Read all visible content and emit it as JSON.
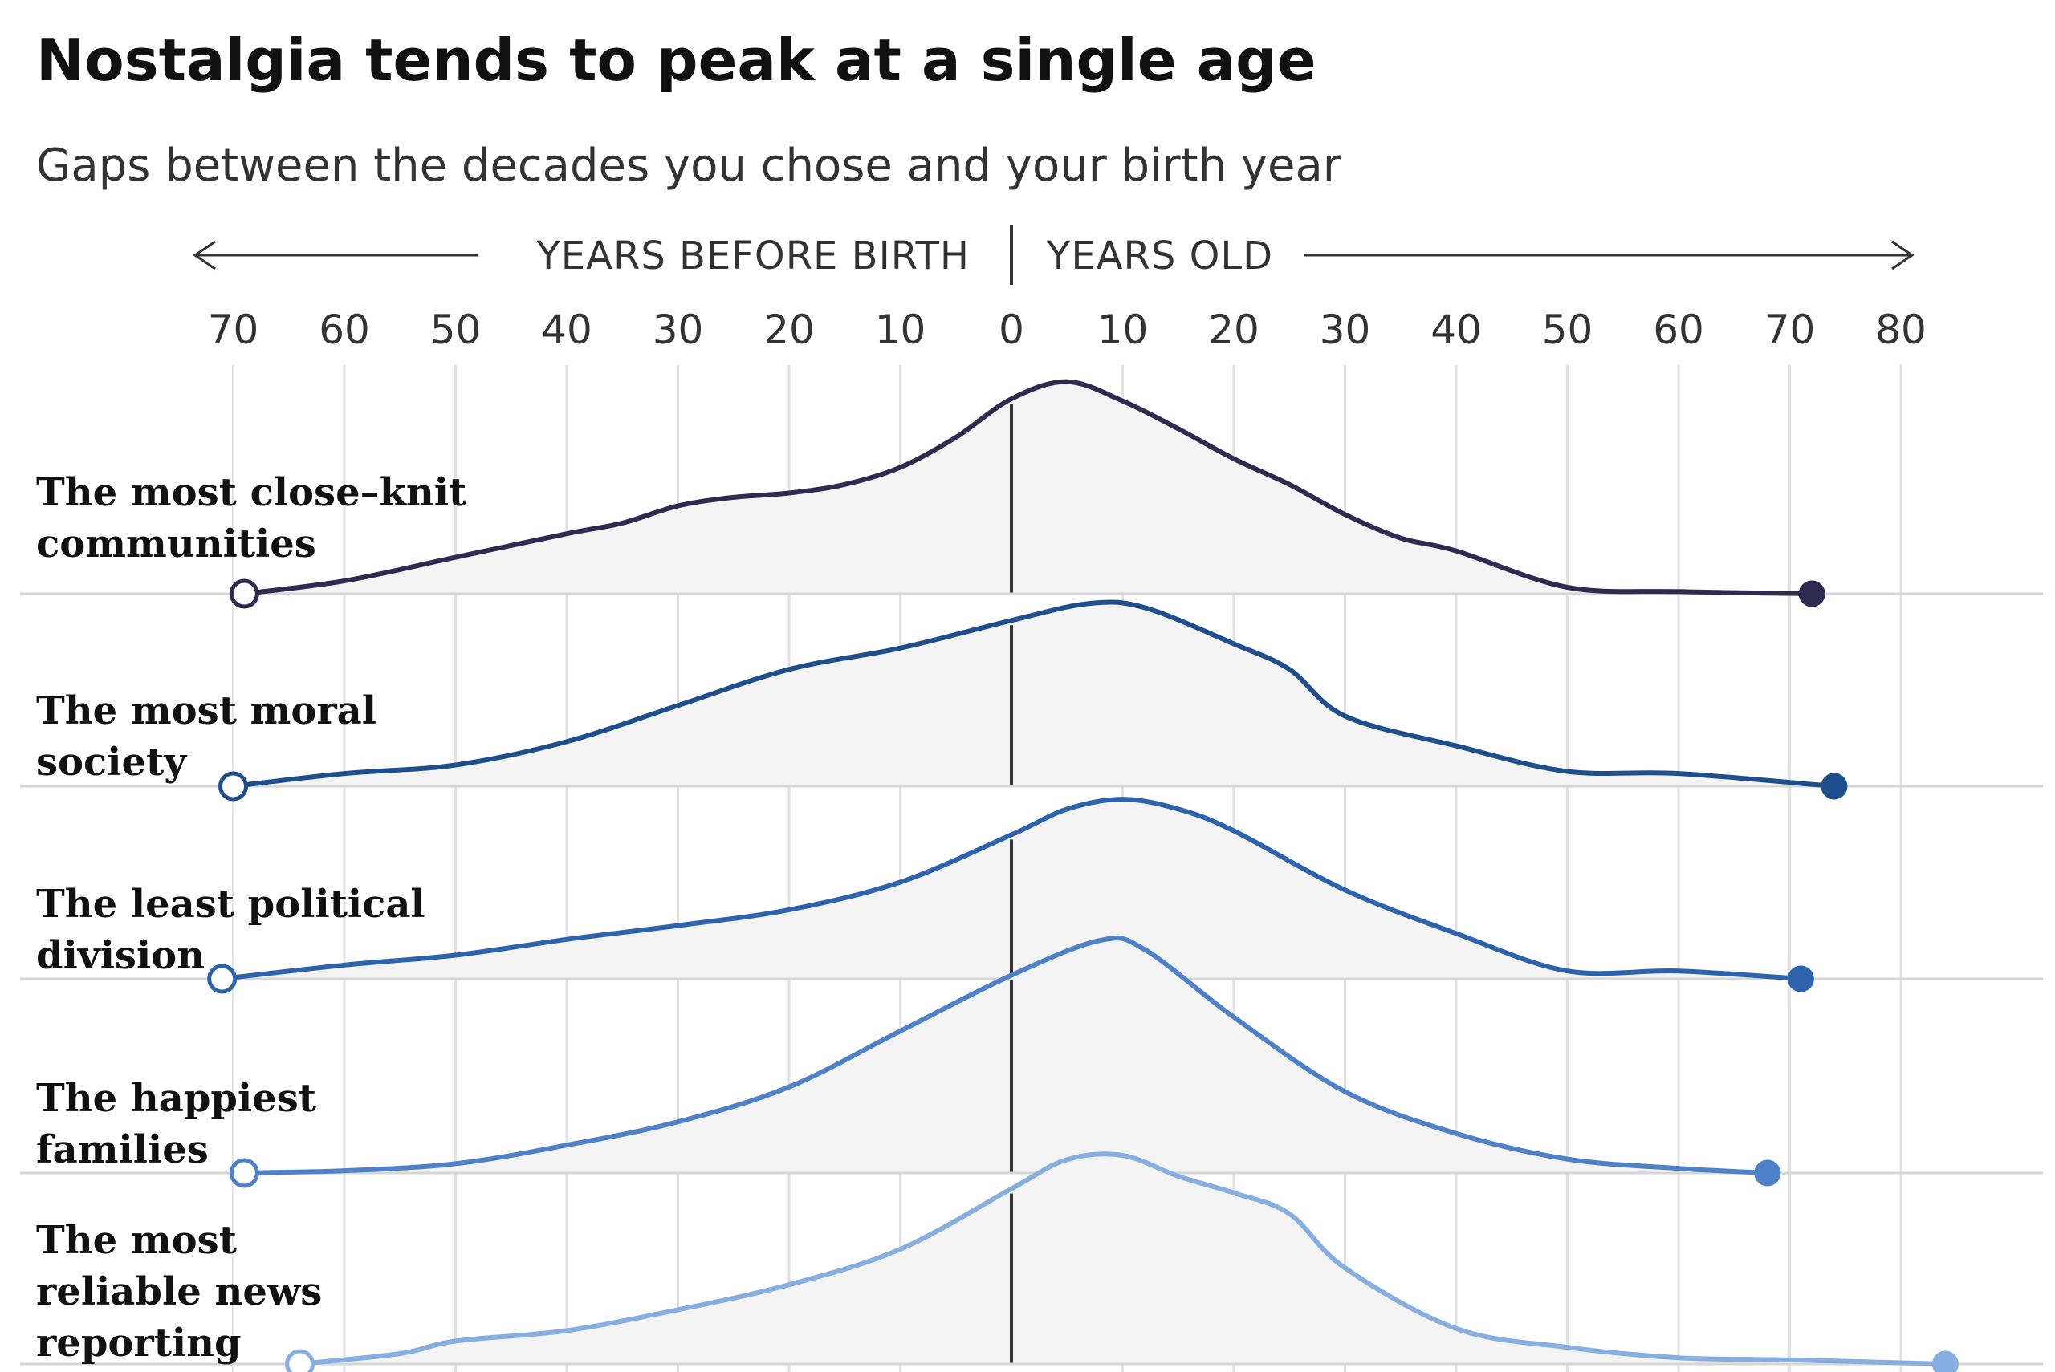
{
  "chart_data": {
    "type": "ridgeline",
    "title": "Nostalgia tends to peak at a single age",
    "subtitle": "Gaps between the decades you chose and your birth year",
    "axis_left_label": "YEARS BEFORE BIRTH",
    "axis_right_label": "YEARS OLD",
    "xlim": [
      -70,
      80
    ],
    "ticks": [
      {
        "value": -70,
        "label": "70"
      },
      {
        "value": -60,
        "label": "60"
      },
      {
        "value": -50,
        "label": "50"
      },
      {
        "value": -40,
        "label": "40"
      },
      {
        "value": -30,
        "label": "30"
      },
      {
        "value": -20,
        "label": "20"
      },
      {
        "value": -10,
        "label": "10"
      },
      {
        "value": 0,
        "label": "0"
      },
      {
        "value": 10,
        "label": "10"
      },
      {
        "value": 20,
        "label": "20"
      },
      {
        "value": 30,
        "label": "30"
      },
      {
        "value": 40,
        "label": "40"
      },
      {
        "value": 50,
        "label": "50"
      },
      {
        "value": 60,
        "label": "60"
      },
      {
        "value": 70,
        "label": "70"
      },
      {
        "value": 80,
        "label": "80"
      }
    ],
    "density_scale_max": 1.0,
    "series": [
      {
        "name": "The most close-knit communities",
        "label_lines": [
          "The most close–knit",
          "communities"
        ],
        "color": "#2f2a4f",
        "x": [
          -69,
          -60,
          -50,
          -40,
          -35,
          -30,
          -25,
          -20,
          -15,
          -10,
          -5,
          0,
          5,
          10,
          15,
          20,
          25,
          30,
          35,
          40,
          50,
          60,
          72
        ],
        "y": [
          0,
          0.06,
          0.17,
          0.28,
          0.33,
          0.41,
          0.45,
          0.47,
          0.51,
          0.59,
          0.73,
          0.91,
          0.99,
          0.9,
          0.77,
          0.63,
          0.51,
          0.37,
          0.26,
          0.2,
          0.03,
          0.01,
          0.0
        ]
      },
      {
        "name": "The most moral society",
        "label_lines": [
          "The most moral",
          "society"
        ],
        "color": "#1f4e8c",
        "x": [
          -70,
          -60,
          -50,
          -40,
          -30,
          -20,
          -10,
          0,
          7,
          12,
          20,
          25,
          30,
          40,
          50,
          60,
          74
        ],
        "y": [
          0,
          0.06,
          0.1,
          0.21,
          0.38,
          0.55,
          0.65,
          0.78,
          0.86,
          0.84,
          0.67,
          0.55,
          0.33,
          0.19,
          0.07,
          0.06,
          0.0
        ]
      },
      {
        "name": "The least political division",
        "label_lines": [
          "The least political",
          "division"
        ],
        "color": "#2d63ad",
        "x": [
          -71,
          -60,
          -50,
          -40,
          -30,
          -20,
          -10,
          0,
          5,
          10,
          15,
          20,
          30,
          40,
          50,
          60,
          71
        ],
        "y": [
          0,
          0.07,
          0.12,
          0.2,
          0.27,
          0.35,
          0.49,
          0.73,
          0.86,
          0.91,
          0.86,
          0.75,
          0.45,
          0.23,
          0.04,
          0.04,
          0.0
        ]
      },
      {
        "name": "The happiest families",
        "label_lines": [
          "The happiest",
          "families"
        ],
        "color": "#4e81c8",
        "x": [
          -69,
          -60,
          -50,
          -40,
          -30,
          -20,
          -10,
          0,
          8,
          12,
          20,
          30,
          40,
          50,
          60,
          68
        ],
        "y": [
          0,
          0.01,
          0.04,
          0.12,
          0.22,
          0.37,
          0.61,
          0.85,
          1.0,
          0.96,
          0.67,
          0.35,
          0.17,
          0.06,
          0.02,
          0.0
        ]
      },
      {
        "name": "The most reliable news reporting",
        "label_lines": [
          "The most",
          "reliable news",
          "reporting"
        ],
        "color": "#86aee0",
        "x": [
          -64,
          -55,
          -50,
          -40,
          -30,
          -20,
          -10,
          0,
          5,
          10,
          15,
          20,
          25,
          30,
          40,
          50,
          60,
          70,
          84
        ],
        "y": [
          0,
          0.05,
          0.11,
          0.16,
          0.26,
          0.38,
          0.55,
          0.84,
          0.98,
          1.0,
          0.9,
          0.82,
          0.72,
          0.46,
          0.17,
          0.08,
          0.03,
          0.02,
          0.0
        ]
      }
    ]
  }
}
